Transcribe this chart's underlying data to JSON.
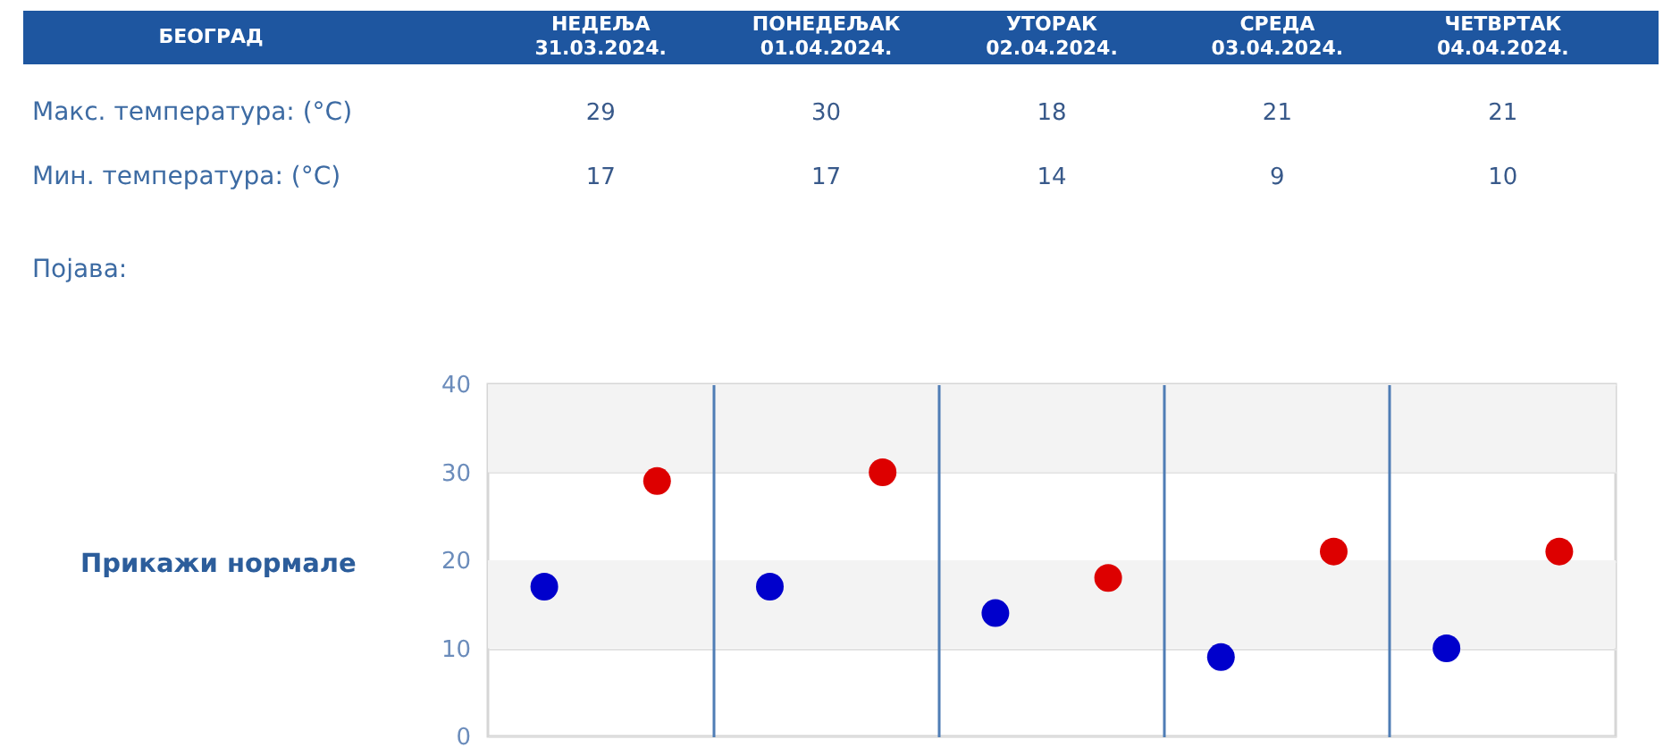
{
  "chart_data": [
    {
      "type": "other",
      "title": "БЕОГРАД",
      "categories": [
        "НЕДЕЉА\n31.03.2024.",
        "ПОНЕДЕЉАК\n01.04.2024.",
        "УТОРАК\n02.04.2024.",
        "СРЕДА\n03.04.2024.",
        "ЧЕТВРТАК\n04.04.2024."
      ],
      "series": [
        {
          "name": "Макс. температура: (°C)",
          "values": [
            29,
            30,
            18,
            21,
            21
          ]
        },
        {
          "name": "Мин. температура: (°C)",
          "values": [
            17,
            17,
            14,
            9,
            10
          ]
        }
      ],
      "data_labels": true,
      "annotations": [
        "Појава:"
      ]
    },
    {
      "type": "scatter",
      "categories": [
        null,
        null,
        null,
        null,
        null
      ],
      "series": [
        {
          "color": "#0000cc",
          "values": [
            17,
            17,
            14,
            9,
            10
          ]
        },
        {
          "color": "#dd0000",
          "values": [
            29,
            30,
            18,
            21,
            21
          ]
        }
      ],
      "ylim": [
        0,
        40
      ],
      "yticks": [
        0,
        10,
        20,
        30,
        40
      ],
      "grid": true,
      "tick_labels": "y",
      "marker": "circle",
      "bands": [
        {
          "axis": "y",
          "from": 10,
          "to": 20,
          "color": "#f3f3f3"
        },
        {
          "axis": "y",
          "from": 30,
          "to": 40,
          "color": "#f3f3f3"
        }
      ],
      "annotations": [
        "Прикажи нормале"
      ]
    }
  ]
}
